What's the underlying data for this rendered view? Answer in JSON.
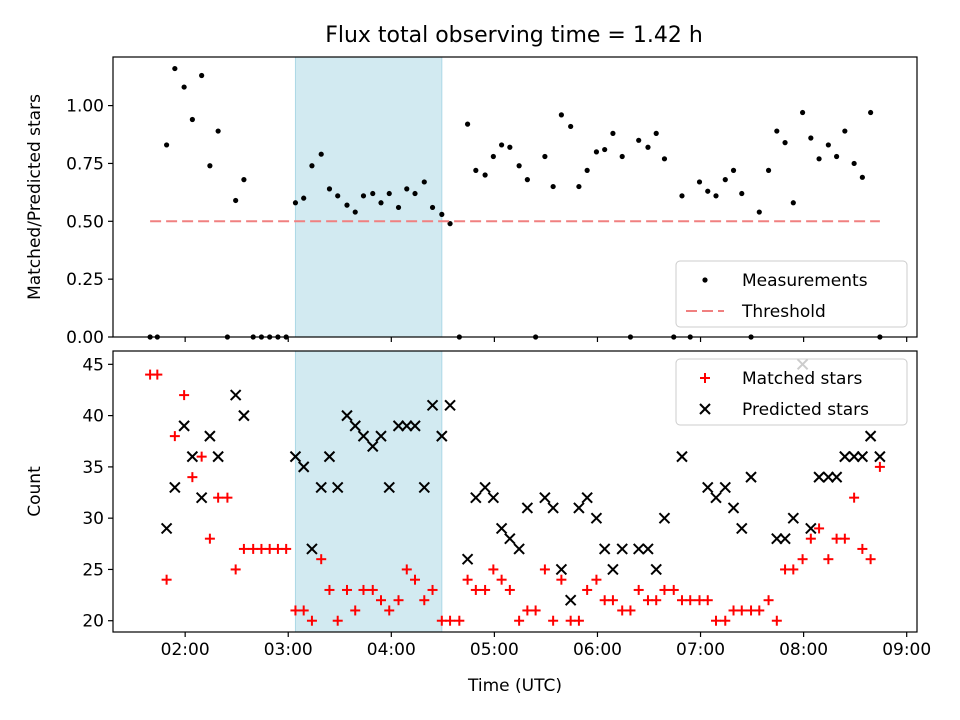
{
  "figure": {
    "title": "Flux total observing time = 1.42 h"
  },
  "colors": {
    "highlight": "#add8e6",
    "threshold": "#f08080",
    "measurement": "#000000",
    "matched": "#ff0000",
    "predicted": "#000000"
  },
  "chart_data": [
    {
      "type": "scatter",
      "ylabel": "Matched/Predicted stars",
      "xlabel": "",
      "xlim": [
        1.3,
        9.1
      ],
      "ylim": [
        0,
        1.21
      ],
      "xticks": [
        2,
        3,
        4,
        5,
        6,
        7,
        8,
        9
      ],
      "xtick_labels": [
        "",
        "",
        "",
        "",
        "",
        "",
        "",
        ""
      ],
      "yticks": [
        0,
        0.25,
        0.5,
        0.75,
        1.0
      ],
      "ytick_labels": [
        "0.00",
        "0.25",
        "0.50",
        "0.75",
        "1.00"
      ],
      "highlight_span": [
        3.07,
        4.49
      ],
      "legend": {
        "position": "lower-right"
      },
      "series": [
        {
          "name": "Measurements",
          "kind": "dot",
          "x": [
            1.66,
            1.73,
            1.82,
            1.9,
            1.99,
            2.07,
            2.16,
            2.24,
            2.32,
            2.41,
            2.49,
            2.57,
            2.66,
            2.74,
            2.82,
            2.9,
            2.98,
            3.07,
            3.15,
            3.23,
            3.32,
            3.4,
            3.48,
            3.57,
            3.65,
            3.73,
            3.82,
            3.9,
            3.98,
            4.07,
            4.15,
            4.23,
            4.32,
            4.4,
            4.49,
            4.57,
            4.66,
            4.74,
            4.82,
            4.91,
            4.99,
            5.07,
            5.15,
            5.24,
            5.32,
            5.4,
            5.49,
            5.57,
            5.65,
            5.74,
            5.82,
            5.9,
            5.99,
            6.07,
            6.15,
            6.24,
            6.32,
            6.4,
            6.49,
            6.57,
            6.65,
            6.74,
            6.82,
            6.9,
            6.99,
            7.07,
            7.15,
            7.24,
            7.32,
            7.4,
            7.49,
            7.57,
            7.66,
            7.74,
            7.82,
            7.9,
            7.99,
            8.07,
            8.15,
            8.24,
            8.32,
            8.4,
            8.49,
            8.57,
            8.65,
            8.74
          ],
          "y": [
            0,
            0,
            0.83,
            1.16,
            1.08,
            0.94,
            1.13,
            0.74,
            0.89,
            0,
            0.59,
            0.68,
            0,
            0,
            0,
            0,
            0,
            0.58,
            0.6,
            0.74,
            0.79,
            0.64,
            0.61,
            0.57,
            0.54,
            0.61,
            0.62,
            0.58,
            0.62,
            0.56,
            0.64,
            0.62,
            0.67,
            0.56,
            0.53,
            0.49,
            0,
            0.92,
            0.72,
            0.7,
            0.78,
            0.83,
            0.82,
            0.74,
            0.68,
            0,
            0.78,
            0.65,
            0.96,
            0.91,
            0.65,
            0.72,
            0.8,
            0.81,
            0.88,
            0.78,
            0,
            0.85,
            0.82,
            0.88,
            0.77,
            0,
            0.61,
            0,
            0.67,
            0.63,
            0.61,
            0.68,
            0.72,
            0.62,
            0,
            0.54,
            0.72,
            0.89,
            0.84,
            0.58,
            0.97,
            0.86,
            0.77,
            0.83,
            0.78,
            0.89,
            0.75,
            0.69,
            0.97,
            0
          ]
        },
        {
          "name": "Threshold",
          "kind": "dashed-line",
          "x": [
            1.66,
            8.74
          ],
          "y": [
            0.5,
            0.5
          ]
        }
      ]
    },
    {
      "type": "scatter",
      "ylabel": "Count",
      "xlabel": "Time (UTC)",
      "xlim": [
        1.3,
        9.1
      ],
      "ylim": [
        18.9,
        46.3
      ],
      "xticks": [
        2,
        3,
        4,
        5,
        6,
        7,
        8,
        9
      ],
      "xtick_labels": [
        "02:00",
        "03:00",
        "04:00",
        "05:00",
        "06:00",
        "07:00",
        "08:00",
        "09:00"
      ],
      "yticks": [
        20,
        25,
        30,
        35,
        40,
        45
      ],
      "ytick_labels": [
        "20",
        "25",
        "30",
        "35",
        "40",
        "45"
      ],
      "highlight_span": [
        3.07,
        4.49
      ],
      "legend": {
        "position": "top-right"
      },
      "series": [
        {
          "name": "Matched stars",
          "kind": "plus",
          "x": [
            1.66,
            1.73,
            1.82,
            1.9,
            1.99,
            2.07,
            2.16,
            2.24,
            2.32,
            2.41,
            2.49,
            2.57,
            2.66,
            2.74,
            2.82,
            2.9,
            2.98,
            3.07,
            3.15,
            3.23,
            3.32,
            3.4,
            3.48,
            3.57,
            3.65,
            3.73,
            3.82,
            3.9,
            3.98,
            4.07,
            4.15,
            4.23,
            4.32,
            4.4,
            4.49,
            4.57,
            4.66,
            4.74,
            4.82,
            4.91,
            4.99,
            5.07,
            5.15,
            5.24,
            5.32,
            5.4,
            5.49,
            5.57,
            5.65,
            5.74,
            5.82,
            5.9,
            5.99,
            6.07,
            6.15,
            6.24,
            6.32,
            6.4,
            6.49,
            6.57,
            6.65,
            6.74,
            6.82,
            6.9,
            6.99,
            7.07,
            7.15,
            7.24,
            7.32,
            7.4,
            7.49,
            7.57,
            7.66,
            7.74,
            7.82,
            7.9,
            7.99,
            8.07,
            8.15,
            8.24,
            8.32,
            8.4,
            8.49,
            8.57,
            8.65,
            8.74
          ],
          "y": [
            44,
            44,
            24,
            38,
            42,
            34,
            36,
            28,
            32,
            32,
            25,
            27,
            27,
            27,
            27,
            27,
            27,
            21,
            21,
            20,
            26,
            23,
            20,
            23,
            21,
            23,
            23,
            22,
            21,
            22,
            25,
            24,
            22,
            23,
            20,
            20,
            20,
            24,
            23,
            23,
            25,
            24,
            23,
            20,
            21,
            21,
            25,
            20,
            24,
            20,
            20,
            23,
            24,
            22,
            22,
            21,
            21,
            23,
            22,
            22,
            23,
            23,
            22,
            22,
            22,
            22,
            20,
            20,
            21,
            21,
            21,
            21,
            22,
            20,
            25,
            25,
            26,
            28,
            29,
            26,
            28,
            28,
            32,
            27,
            26,
            35
          ]
        },
        {
          "name": "Predicted stars",
          "kind": "cross",
          "x": [
            1.82,
            1.9,
            1.99,
            2.07,
            2.16,
            2.24,
            2.32,
            2.49,
            2.57,
            3.07,
            3.15,
            3.23,
            3.32,
            3.4,
            3.48,
            3.57,
            3.65,
            3.73,
            3.82,
            3.9,
            3.98,
            4.07,
            4.15,
            4.23,
            4.32,
            4.4,
            4.49,
            4.57,
            4.74,
            4.82,
            4.91,
            4.99,
            5.07,
            5.15,
            5.24,
            5.32,
            5.49,
            5.57,
            5.65,
            5.74,
            5.82,
            5.9,
            5.99,
            6.07,
            6.15,
            6.24,
            6.4,
            6.49,
            6.57,
            6.65,
            6.82,
            7.07,
            7.15,
            7.24,
            7.32,
            7.4,
            7.49,
            7.74,
            7.82,
            7.9,
            7.99,
            8.07,
            8.15,
            8.24,
            8.32,
            8.4,
            8.49,
            8.57,
            8.65,
            8.74
          ],
          "y": [
            29,
            33,
            39,
            36,
            32,
            38,
            36,
            42,
            40,
            36,
            35,
            27,
            33,
            36,
            33,
            40,
            39,
            38,
            37,
            38,
            33,
            39,
            39,
            39,
            33,
            41,
            38,
            41,
            26,
            32,
            33,
            32,
            29,
            28,
            27,
            31,
            32,
            31,
            25,
            22,
            31,
            32,
            30,
            27,
            25,
            27,
            27,
            27,
            25,
            30,
            36,
            33,
            32,
            33,
            31,
            29,
            34,
            28,
            28,
            30,
            45,
            29,
            34,
            34,
            34,
            36,
            36,
            36,
            38,
            36
          ]
        }
      ]
    }
  ]
}
